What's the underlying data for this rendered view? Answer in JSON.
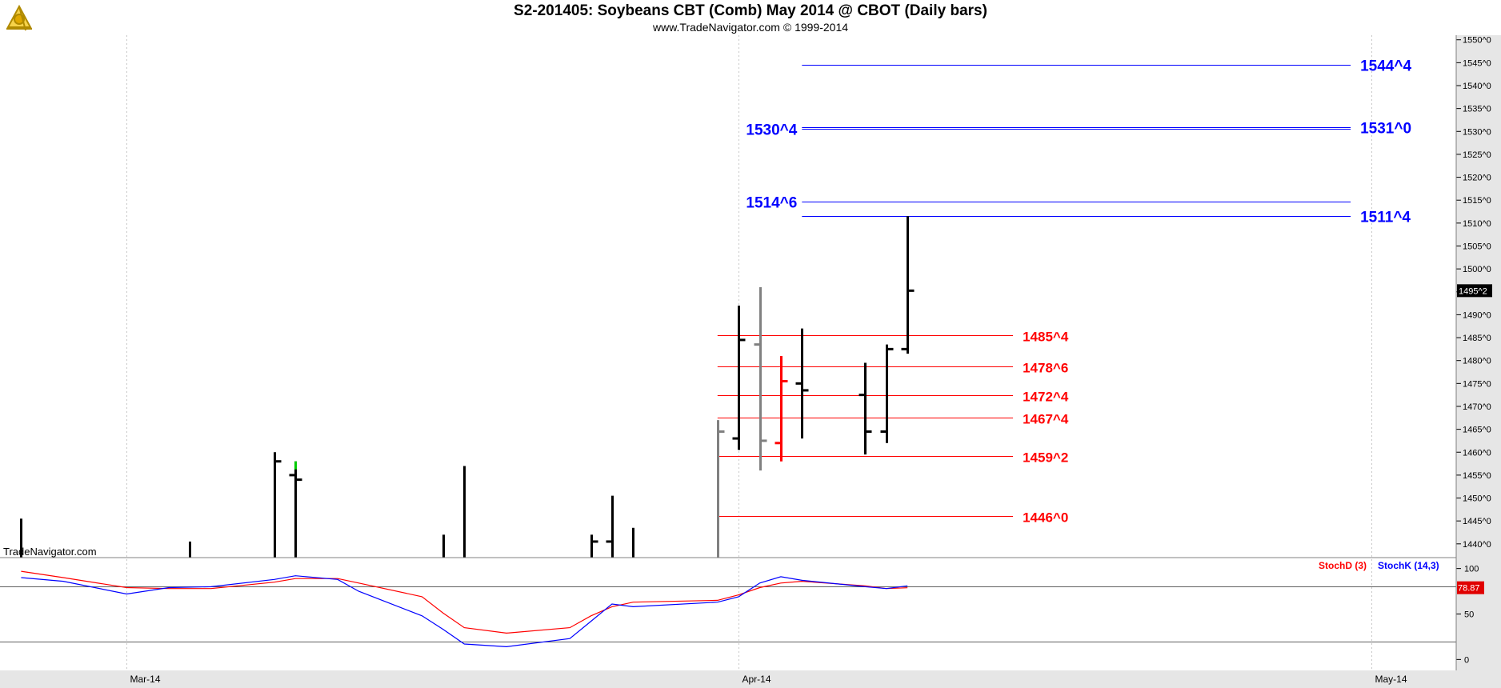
{
  "header": {
    "title": "S2-201405:  Soybeans CBT (Comb) May 2014 @ CBOT  (Daily bars)",
    "subtitle": "www.TradeNavigator.com © 1999-2014",
    "logo_icon": "sextant-icon"
  },
  "watermark": "TradeNavigator.com",
  "colors": {
    "background": "#ffffff",
    "axis_panel": "#e6e6e6",
    "bar_up": "#000000",
    "bar_neutral": "#808080",
    "bar_down": "#ff0000",
    "bar_highlight": "#00cc00",
    "resistance": "#0000ff",
    "support": "#ff0000",
    "stoch_d": "#ff0000",
    "stoch_k": "#0000ff",
    "grid": "#c8c8c8"
  },
  "chart_data": [
    {
      "type": "bar",
      "subtype": "ohlc",
      "title": "S2-201405:  Soybeans CBT (Comb) May 2014 @ CBOT  (Daily bars)",
      "price_unit_note": "prices in cents and eighths, e.g. 1485^4 = 1485 4/8",
      "ylim": [
        1437,
        1551
      ],
      "ytick_values": [
        1440,
        1445,
        1450,
        1455,
        1460,
        1465,
        1470,
        1475,
        1480,
        1485,
        1490,
        1495,
        1500,
        1505,
        1510,
        1515,
        1520,
        1525,
        1530,
        1535,
        1540,
        1545,
        1550
      ],
      "ytick_labels": [
        "1440^0",
        "1445^0",
        "1450^0",
        "1455^0",
        "1460^0",
        "1465^0",
        "1470^0",
        "1475^0",
        "1480^0",
        "1485^0",
        "1490^0",
        "1495^0",
        "1500^0",
        "1505^0",
        "1510^0",
        "1515^0",
        "1520^0",
        "1525^0",
        "1530^0",
        "1535^0",
        "1540^0",
        "1545^0",
        "1550^0"
      ],
      "xlim": [
        "2014-02-25",
        "2014-05-05"
      ],
      "xtick_labels": [
        {
          "date": "2014-03-03",
          "label": "Mar-14"
        },
        {
          "date": "2014-04-01",
          "label": "Apr-14"
        },
        {
          "date": "2014-05-01",
          "label": "May-14"
        }
      ],
      "last_price_label": "1495^2",
      "bars": [
        {
          "date": "2014-02-26",
          "high": 1445.5,
          "low": 1437,
          "open": null,
          "close": null,
          "color": "up"
        },
        {
          "date": "2014-03-06",
          "high": 1440.5,
          "low": 1437,
          "open": null,
          "close": null,
          "color": "up"
        },
        {
          "date": "2014-03-10",
          "high": 1460,
          "low": 1437,
          "open": null,
          "close": 1458,
          "color": "up"
        },
        {
          "date": "2014-03-11",
          "high": 1458,
          "low": 1437,
          "open": 1455,
          "close": 1454,
          "color": "up",
          "high_mark": "highlight"
        },
        {
          "date": "2014-03-18",
          "high": 1442,
          "low": 1437,
          "open": null,
          "close": null,
          "color": "up"
        },
        {
          "date": "2014-03-19",
          "high": 1457,
          "low": 1437,
          "open": null,
          "close": null,
          "color": "up"
        },
        {
          "date": "2014-03-25",
          "high": 1442,
          "low": 1437,
          "open": null,
          "close": 1440.5,
          "color": "up"
        },
        {
          "date": "2014-03-26",
          "high": 1450.5,
          "low": 1437,
          "open": 1440.5,
          "close": null,
          "color": "up"
        },
        {
          "date": "2014-03-27",
          "high": 1443.5,
          "low": 1437,
          "open": null,
          "close": null,
          "color": "up"
        },
        {
          "date": "2014-03-31",
          "high": 1467,
          "low": 1437,
          "open": null,
          "close": 1464.5,
          "color": "neutral"
        },
        {
          "date": "2014-04-01",
          "high": 1492,
          "low": 1460.5,
          "open": 1463,
          "close": 1484.5,
          "color": "up"
        },
        {
          "date": "2014-04-02",
          "high": 1496,
          "low": 1456,
          "open": 1483.5,
          "close": 1462.5,
          "color": "neutral"
        },
        {
          "date": "2014-04-03",
          "high": 1481,
          "low": 1458,
          "open": 1462,
          "close": 1475.5,
          "color": "down"
        },
        {
          "date": "2014-04-04",
          "high": 1487,
          "low": 1463,
          "open": 1475,
          "close": 1473.5,
          "color": "up"
        },
        {
          "date": "2014-04-07",
          "high": 1479.5,
          "low": 1459.5,
          "open": 1472.5,
          "close": 1464.5,
          "color": "up"
        },
        {
          "date": "2014-04-08",
          "high": 1483.5,
          "low": 1462,
          "open": 1464.5,
          "close": 1482.5,
          "color": "up"
        },
        {
          "date": "2014-04-09",
          "high": 1511.5,
          "low": 1481.5,
          "open": 1482.5,
          "close": 1495.25,
          "color": "up"
        }
      ],
      "levels": [
        {
          "label": "1544^4",
          "value": 1544.5,
          "color": "resistance",
          "start": "2014-04-04",
          "end": "2014-04-30",
          "label_side": "right"
        },
        {
          "label": "1531^0",
          "value": 1531.0,
          "color": "resistance",
          "start": "2014-04-04",
          "end": "2014-04-30",
          "label_side": "right"
        },
        {
          "label": "1530^4",
          "value": 1530.5,
          "color": "resistance",
          "start": "2014-04-04",
          "end": "2014-04-30",
          "label_side": "left"
        },
        {
          "label": "1514^6",
          "value": 1514.75,
          "color": "resistance",
          "start": "2014-04-04",
          "end": "2014-04-30",
          "label_side": "left"
        },
        {
          "label": "1511^4",
          "value": 1511.5,
          "color": "resistance",
          "start": "2014-04-04",
          "end": "2014-04-30",
          "label_side": "right"
        },
        {
          "label": "1485^4",
          "value": 1485.5,
          "color": "support",
          "start": "2014-03-31",
          "end": "2014-04-14",
          "label_side": "right"
        },
        {
          "label": "1478^6",
          "value": 1478.75,
          "color": "support",
          "start": "2014-03-31",
          "end": "2014-04-14",
          "label_side": "right"
        },
        {
          "label": "1472^4",
          "value": 1472.5,
          "color": "support",
          "start": "2014-03-31",
          "end": "2014-04-14",
          "label_side": "right"
        },
        {
          "label": "1467^4",
          "value": 1467.5,
          "color": "support",
          "start": "2014-03-31",
          "end": "2014-04-14",
          "label_side": "right"
        },
        {
          "label": "1459^2",
          "value": 1459.25,
          "color": "support",
          "start": "2014-03-31",
          "end": "2014-04-14",
          "label_side": "right"
        },
        {
          "label": "1446^0",
          "value": 1446.0,
          "color": "support",
          "start": "2014-03-31",
          "end": "2014-04-14",
          "label_side": "right"
        }
      ]
    },
    {
      "type": "line",
      "ylim": [
        -12,
        112
      ],
      "ytick_values": [
        0,
        50,
        100
      ],
      "ytick_labels": [
        "0",
        "50",
        "100"
      ],
      "reference_lines": [
        20,
        80
      ],
      "last_value_label": "78.87",
      "legend": [
        "StochD (3)",
        "StochK (14,3)"
      ],
      "legend_placement": "top-right",
      "x": [
        "2014-02-26",
        "2014-02-28",
        "2014-03-03",
        "2014-03-05",
        "2014-03-07",
        "2014-03-10",
        "2014-03-11",
        "2014-03-13",
        "2014-03-14",
        "2014-03-17",
        "2014-03-18",
        "2014-03-19",
        "2014-03-21",
        "2014-03-24",
        "2014-03-25",
        "2014-03-26",
        "2014-03-27",
        "2014-03-31",
        "2014-04-01",
        "2014-04-02",
        "2014-04-03",
        "2014-04-04",
        "2014-04-07",
        "2014-04-08",
        "2014-04-09"
      ],
      "series": [
        {
          "name": "StochD (3)",
          "color": "stoch_d",
          "values": [
            97,
            90,
            79,
            78,
            78,
            85,
            89,
            89,
            84,
            69,
            51,
            35,
            29,
            35,
            48,
            58,
            63,
            65,
            71,
            79,
            84,
            86,
            81,
            78,
            78.87
          ]
        },
        {
          "name": "StochK (14,3)",
          "color": "stoch_k",
          "values": [
            90,
            86,
            72,
            79,
            80,
            88,
            92,
            88,
            75,
            48,
            33,
            17,
            14,
            23,
            42,
            61,
            58,
            63,
            69,
            84,
            91,
            87,
            80,
            78,
            81
          ]
        }
      ]
    }
  ]
}
